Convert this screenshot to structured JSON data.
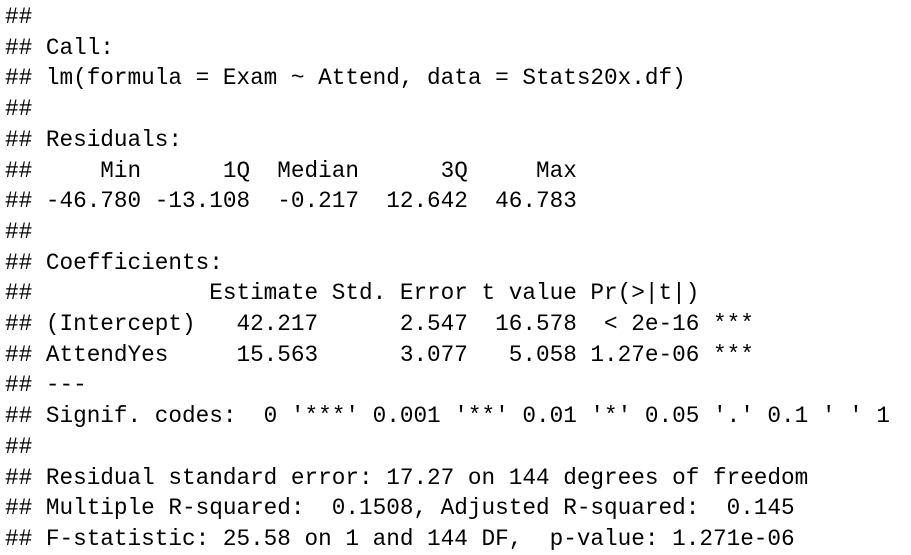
{
  "colors": {
    "background": "#ffffff",
    "text": "#000000"
  },
  "console": {
    "description": "R lm() model summary output",
    "lines": [
      "##",
      "## Call:",
      "## lm(formula = Exam ~ Attend, data = Stats20x.df)",
      "##",
      "## Residuals:",
      "##     Min      1Q  Median      3Q     Max",
      "## -46.780 -13.108  -0.217  12.642  46.783",
      "##",
      "## Coefficients:",
      "##             Estimate Std. Error t value Pr(>|t|)",
      "## (Intercept)   42.217      2.547  16.578  < 2e-16 ***",
      "## AttendYes     15.563      3.077   5.058 1.27e-06 ***",
      "## ---",
      "## Signif. codes:  0 '***' 0.001 '**' 0.01 '*' 0.05 '.' 0.1 ' ' 1",
      "##",
      "## Residual standard error: 17.27 on 144 degrees of freedom",
      "## Multiple R-squared:  0.1508, Adjusted R-squared:  0.145",
      "## F-statistic: 25.58 on 1 and 144 DF,  p-value: 1.271e-06"
    ]
  }
}
